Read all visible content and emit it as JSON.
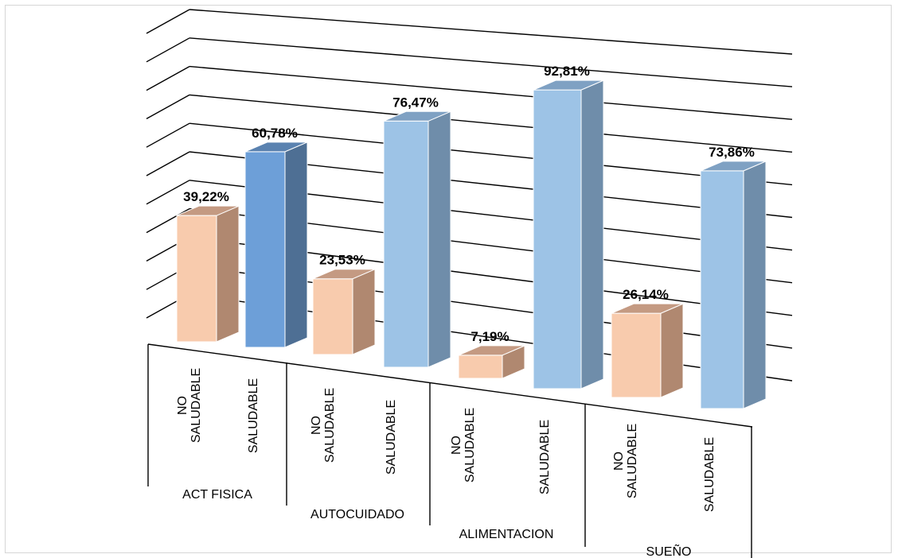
{
  "chart_data": {
    "type": "bar",
    "groups": [
      "ACT FISICA",
      "AUTOCUIDADO",
      "ALIMENTACION",
      "SUEÑO"
    ],
    "subcategories": [
      "NO SALUDABLE",
      "SALUDABLE"
    ],
    "series": [
      {
        "values": [
          39.22,
          23.53,
          7.19,
          26.14
        ]
      },
      {
        "values": [
          60.78,
          76.47,
          92.81,
          73.86
        ]
      }
    ],
    "data_labels": [
      [
        "39,22%",
        "60,78%"
      ],
      [
        "23,53%",
        "76,47%"
      ],
      [
        "7,19%",
        "92,81%"
      ],
      [
        "26,14%",
        "73,86%"
      ]
    ],
    "ylim": [
      0,
      100
    ],
    "grid": true,
    "three_d": true,
    "legend": "none",
    "colors": {
      "no_saludable_front": "#F8CBAD",
      "no_saludable_side": "#B08870",
      "no_saludable_top": "#C49A82",
      "saludable_front": "#9DC3E6",
      "saludable_side": "#6F8DAA",
      "saludable_top": "#7FA1C3",
      "saludable_highlight_front": "#6D9FD8",
      "saludable_highlight_side": "#4E6F94",
      "saludable_highlight_top": "#5A82B0",
      "gridline": "#000000"
    }
  }
}
